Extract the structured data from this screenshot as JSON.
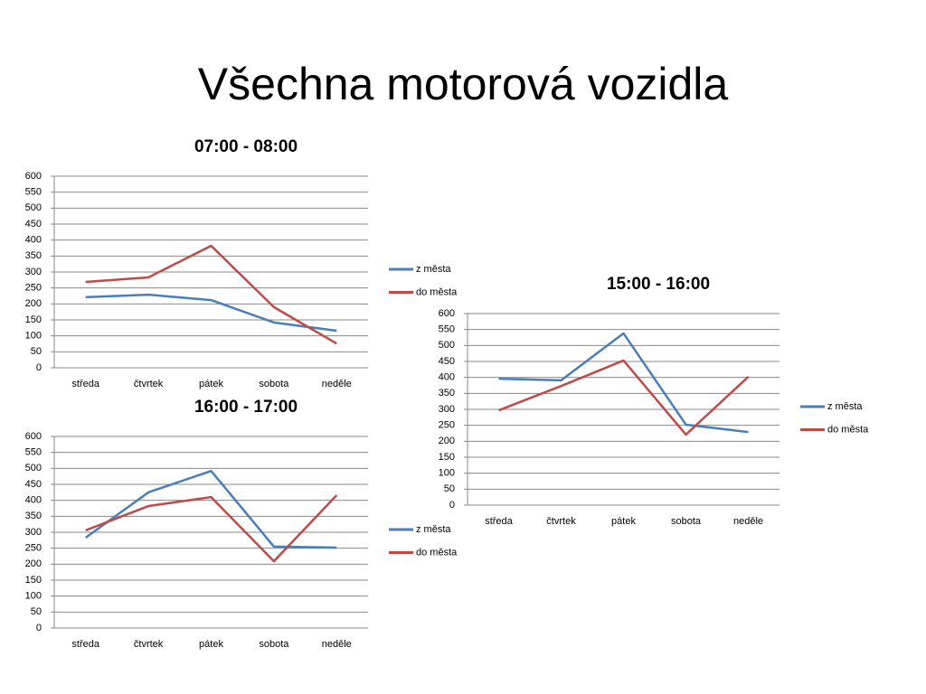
{
  "title": "Všechna motorová vozidla",
  "chart_data": [
    {
      "type": "line",
      "title": "07:00 - 08:00",
      "categories": [
        "středa",
        "čtvrtek",
        "pátek",
        "sobota",
        "neděle"
      ],
      "series": [
        {
          "name": "z města",
          "color": "#4a7ebb",
          "values": [
            221,
            229,
            212,
            142,
            116
          ]
        },
        {
          "name": "do města",
          "color": "#be4b48",
          "values": [
            269,
            283,
            382,
            190,
            76
          ]
        }
      ],
      "ylim": [
        0,
        600
      ],
      "yticks": [
        0,
        50,
        100,
        150,
        200,
        250,
        300,
        350,
        400,
        450,
        500,
        550,
        600
      ],
      "grid": true,
      "legend": "right"
    },
    {
      "type": "line",
      "title": "15:00 - 16:00",
      "categories": [
        "středa",
        "čtvrtek",
        "pátek",
        "sobota",
        "neděle"
      ],
      "series": [
        {
          "name": "z města",
          "color": "#4a7ebb",
          "values": [
            396,
            391,
            538,
            252,
            229
          ]
        },
        {
          "name": "do města",
          "color": "#be4b48",
          "values": [
            297,
            373,
            453,
            221,
            402
          ]
        }
      ],
      "ylim": [
        0,
        600
      ],
      "yticks": [
        0,
        50,
        100,
        150,
        200,
        250,
        300,
        350,
        400,
        450,
        500,
        550,
        600
      ],
      "grid": true,
      "legend": "right"
    },
    {
      "type": "line",
      "title": "16:00 - 17:00",
      "categories": [
        "středa",
        "čtvrtek",
        "pátek",
        "sobota",
        "neděle"
      ],
      "series": [
        {
          "name": "z města",
          "color": "#4a7ebb",
          "values": [
            283,
            425,
            492,
            255,
            252
          ]
        },
        {
          "name": "do města",
          "color": "#be4b48",
          "values": [
            306,
            382,
            410,
            209,
            416
          ]
        }
      ],
      "ylim": [
        0,
        600
      ],
      "yticks": [
        0,
        50,
        100,
        150,
        200,
        250,
        300,
        350,
        400,
        450,
        500,
        550,
        600
      ],
      "grid": true,
      "legend": "right"
    }
  ]
}
